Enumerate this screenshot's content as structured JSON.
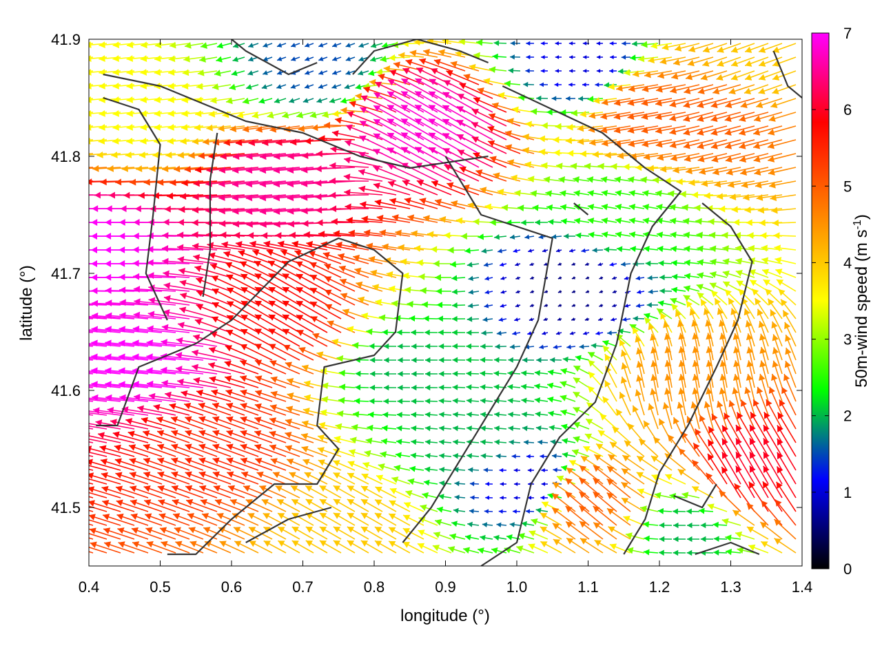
{
  "chart_data": {
    "type": "vector-field",
    "xlabel": "longitude (°)",
    "ylabel": "latitude (°)",
    "xlim": [
      0.4,
      1.4
    ],
    "ylim": [
      41.45,
      41.9
    ],
    "x_ticks": [
      "0.4",
      "0.5",
      "0.6",
      "0.7",
      "0.8",
      "0.9",
      "1.0",
      "1.1",
      "1.2",
      "1.3",
      "1.4"
    ],
    "y_ticks": [
      "41.5",
      "41.6",
      "41.7",
      "41.8",
      "41.9"
    ],
    "colorbar": {
      "label_prefix": "50m-wind speed (m s",
      "label_exponent": "-1",
      "label_suffix": ")",
      "range": [
        0,
        7
      ],
      "ticks": [
        "0",
        "1",
        "2",
        "3",
        "4",
        "5",
        "6",
        "7"
      ],
      "stops": [
        "#000000",
        "#0000ff",
        "#00ff00",
        "#ffff00",
        "#ff8000",
        "#ff0000",
        "#ff00ff"
      ]
    },
    "wind_regions": [
      {
        "lon": 0.45,
        "lat": 41.72,
        "speed": 7.0,
        "dir_deg": 180
      },
      {
        "lon": 0.5,
        "lat": 41.62,
        "speed": 7.0,
        "dir_deg": 175
      },
      {
        "lon": 0.5,
        "lat": 41.84,
        "speed": 3.5,
        "dir_deg": 185
      },
      {
        "lon": 0.7,
        "lat": 41.78,
        "speed": 6.5,
        "dir_deg": 185
      },
      {
        "lon": 0.7,
        "lat": 41.66,
        "speed": 5.8,
        "dir_deg": 150
      },
      {
        "lon": 0.6,
        "lat": 41.55,
        "speed": 5.5,
        "dir_deg": 160
      },
      {
        "lon": 0.72,
        "lat": 41.88,
        "speed": 1.5,
        "dir_deg": 200
      },
      {
        "lon": 0.9,
        "lat": 41.82,
        "speed": 6.8,
        "dir_deg": 150
      },
      {
        "lon": 0.85,
        "lat": 41.62,
        "speed": 2.0,
        "dir_deg": 180
      },
      {
        "lon": 0.95,
        "lat": 41.56,
        "speed": 2.0,
        "dir_deg": 175
      },
      {
        "lon": 1.02,
        "lat": 41.52,
        "speed": 1.0,
        "dir_deg": 180
      },
      {
        "lon": 1.08,
        "lat": 41.69,
        "speed": 0.6,
        "dir_deg": 200
      },
      {
        "lon": 1.15,
        "lat": 41.75,
        "speed": 2.5,
        "dir_deg": 170
      },
      {
        "lon": 1.2,
        "lat": 41.84,
        "speed": 5.0,
        "dir_deg": 190
      },
      {
        "lon": 1.3,
        "lat": 41.84,
        "speed": 5.0,
        "dir_deg": 195
      },
      {
        "lon": 1.25,
        "lat": 41.6,
        "speed": 4.5,
        "dir_deg": 100
      },
      {
        "lon": 1.34,
        "lat": 41.52,
        "speed": 6.0,
        "dir_deg": 120
      },
      {
        "lon": 1.12,
        "lat": 41.5,
        "speed": 5.0,
        "dir_deg": 140
      },
      {
        "lon": 1.25,
        "lat": 41.48,
        "speed": 2.0,
        "dir_deg": 180
      },
      {
        "lon": 0.78,
        "lat": 41.48,
        "speed": 4.0,
        "dir_deg": 150
      },
      {
        "lon": 1.1,
        "lat": 41.88,
        "speed": 1.0,
        "dir_deg": 180
      },
      {
        "lon": 1.36,
        "lat": 41.88,
        "speed": 4.0,
        "dir_deg": 200
      }
    ],
    "coastlines": [
      [
        [
          0.41,
          41.57
        ],
        [
          0.44,
          41.57
        ],
        [
          0.47,
          41.62
        ],
        [
          0.55,
          41.64
        ],
        [
          0.6,
          41.66
        ],
        [
          0.68,
          41.71
        ],
        [
          0.75,
          41.73
        ],
        [
          0.8,
          41.72
        ],
        [
          0.84,
          41.7
        ],
        [
          0.83,
          41.65
        ],
        [
          0.8,
          41.63
        ],
        [
          0.73,
          41.62
        ],
        [
          0.72,
          41.57
        ],
        [
          0.75,
          41.55
        ],
        [
          0.72,
          41.52
        ],
        [
          0.66,
          41.52
        ],
        [
          0.6,
          41.49
        ],
        [
          0.55,
          41.46
        ],
        [
          0.51,
          41.46
        ]
      ],
      [
        [
          0.42,
          41.87
        ],
        [
          0.5,
          41.86
        ],
        [
          0.58,
          41.84
        ],
        [
          0.62,
          41.83
        ],
        [
          0.7,
          41.82
        ],
        [
          0.78,
          41.8
        ],
        [
          0.85,
          41.79
        ],
        [
          0.96,
          41.8
        ]
      ],
      [
        [
          0.42,
          41.85
        ],
        [
          0.47,
          41.84
        ],
        [
          0.5,
          41.81
        ],
        [
          0.49,
          41.75
        ],
        [
          0.48,
          41.7
        ],
        [
          0.51,
          41.66
        ]
      ],
      [
        [
          0.58,
          41.82
        ],
        [
          0.57,
          41.78
        ],
        [
          0.57,
          41.72
        ],
        [
          0.56,
          41.68
        ]
      ],
      [
        [
          0.6,
          41.9
        ],
        [
          0.62,
          41.89
        ],
        [
          0.68,
          41.87
        ],
        [
          0.72,
          41.88
        ]
      ],
      [
        [
          0.77,
          41.87
        ],
        [
          0.8,
          41.89
        ],
        [
          0.86,
          41.9
        ],
        [
          0.92,
          41.89
        ],
        [
          0.96,
          41.88
        ]
      ],
      [
        [
          0.98,
          41.86
        ],
        [
          1.05,
          41.84
        ],
        [
          1.12,
          41.82
        ],
        [
          1.18,
          41.79
        ],
        [
          1.23,
          41.77
        ],
        [
          1.19,
          41.74
        ],
        [
          1.16,
          41.7
        ],
        [
          1.14,
          41.64
        ],
        [
          1.11,
          41.59
        ],
        [
          1.06,
          41.56
        ],
        [
          1.02,
          41.52
        ],
        [
          1.0,
          41.47
        ],
        [
          0.95,
          41.45
        ]
      ],
      [
        [
          0.9,
          41.8
        ],
        [
          0.95,
          41.75
        ],
        [
          1.0,
          41.74
        ],
        [
          1.05,
          41.73
        ],
        [
          1.03,
          41.66
        ],
        [
          1.0,
          41.62
        ],
        [
          0.96,
          41.58
        ],
        [
          0.92,
          41.54
        ],
        [
          0.88,
          41.5
        ],
        [
          0.84,
          41.47
        ]
      ],
      [
        [
          1.26,
          41.76
        ],
        [
          1.3,
          41.74
        ],
        [
          1.33,
          41.71
        ],
        [
          1.31,
          41.66
        ],
        [
          1.28,
          41.62
        ],
        [
          1.24,
          41.57
        ],
        [
          1.2,
          41.53
        ],
        [
          1.18,
          41.49
        ],
        [
          1.15,
          41.46
        ]
      ],
      [
        [
          1.22,
          41.51
        ],
        [
          1.26,
          41.5
        ],
        [
          1.28,
          41.52
        ]
      ],
      [
        [
          1.25,
          41.46
        ],
        [
          1.3,
          41.47
        ],
        [
          1.34,
          41.46
        ]
      ],
      [
        [
          1.36,
          41.89
        ],
        [
          1.38,
          41.86
        ],
        [
          1.4,
          41.85
        ]
      ],
      [
        [
          0.62,
          41.47
        ],
        [
          0.68,
          41.49
        ],
        [
          0.74,
          41.5
        ]
      ],
      [
        [
          1.08,
          41.76
        ],
        [
          1.1,
          41.75
        ]
      ]
    ]
  }
}
